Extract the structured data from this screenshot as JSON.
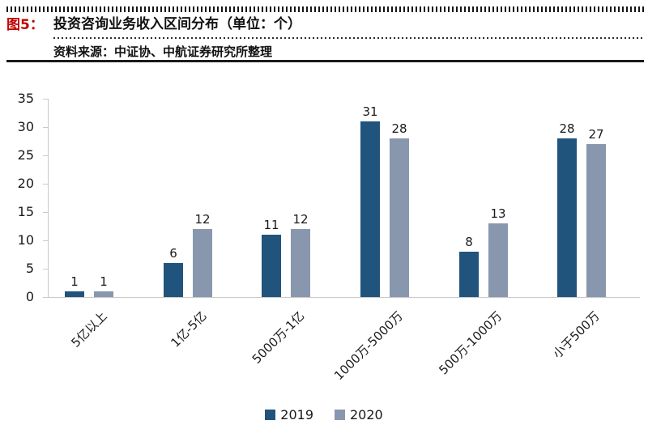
{
  "figure": {
    "tag": "图5：",
    "title": "投资咨询业务收入区间分布（单位：个）",
    "source": "资料来源：中证协、中航证券研究所整理"
  },
  "colors": {
    "tag_red": "#C00000",
    "series_2019": "#20547C",
    "series_2020": "#8997AE",
    "axis_gray": "#C9C9C9",
    "text": "#1A1A1A"
  },
  "chart_data": {
    "type": "bar",
    "title": "投资咨询业务收入区间分布（单位：个）",
    "categories": [
      "5亿以上",
      "1亿-5亿",
      "5000万-1亿",
      "1000万-5000万",
      "500万-1000万",
      "小于500万"
    ],
    "series": [
      {
        "name": "2019",
        "color": "#20547C",
        "values": [
          1,
          6,
          11,
          31,
          8,
          28
        ]
      },
      {
        "name": "2020",
        "color": "#8997AE",
        "values": [
          1,
          12,
          12,
          28,
          13,
          27
        ]
      }
    ],
    "xlabel": "",
    "ylabel": "",
    "ylim": [
      0,
      35
    ],
    "yticks": [
      0,
      5,
      10,
      15,
      20,
      25,
      30,
      35
    ],
    "grid": false,
    "value_labels": true,
    "legend_position": "bottom"
  }
}
